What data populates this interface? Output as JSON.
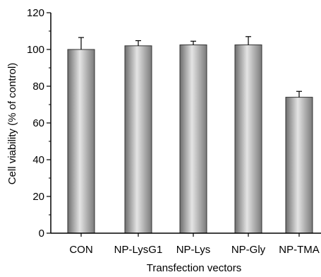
{
  "chart_data": {
    "type": "bar",
    "categories": [
      "CON",
      "NP-LysG1",
      "NP-Lys",
      "NP-Gly",
      "NP-TMA"
    ],
    "values": [
      100,
      102,
      102.5,
      102.5,
      74
    ],
    "errors": [
      6.5,
      2.8,
      2.0,
      4.5,
      3.2
    ],
    "xlabel": "Transfection vectors",
    "ylabel": "Cell viability (% of control)",
    "ylim": [
      0,
      120
    ],
    "yticks": [
      0,
      20,
      40,
      60,
      80,
      100,
      120
    ],
    "grid": false,
    "bar_color": "#9a9a9a"
  }
}
